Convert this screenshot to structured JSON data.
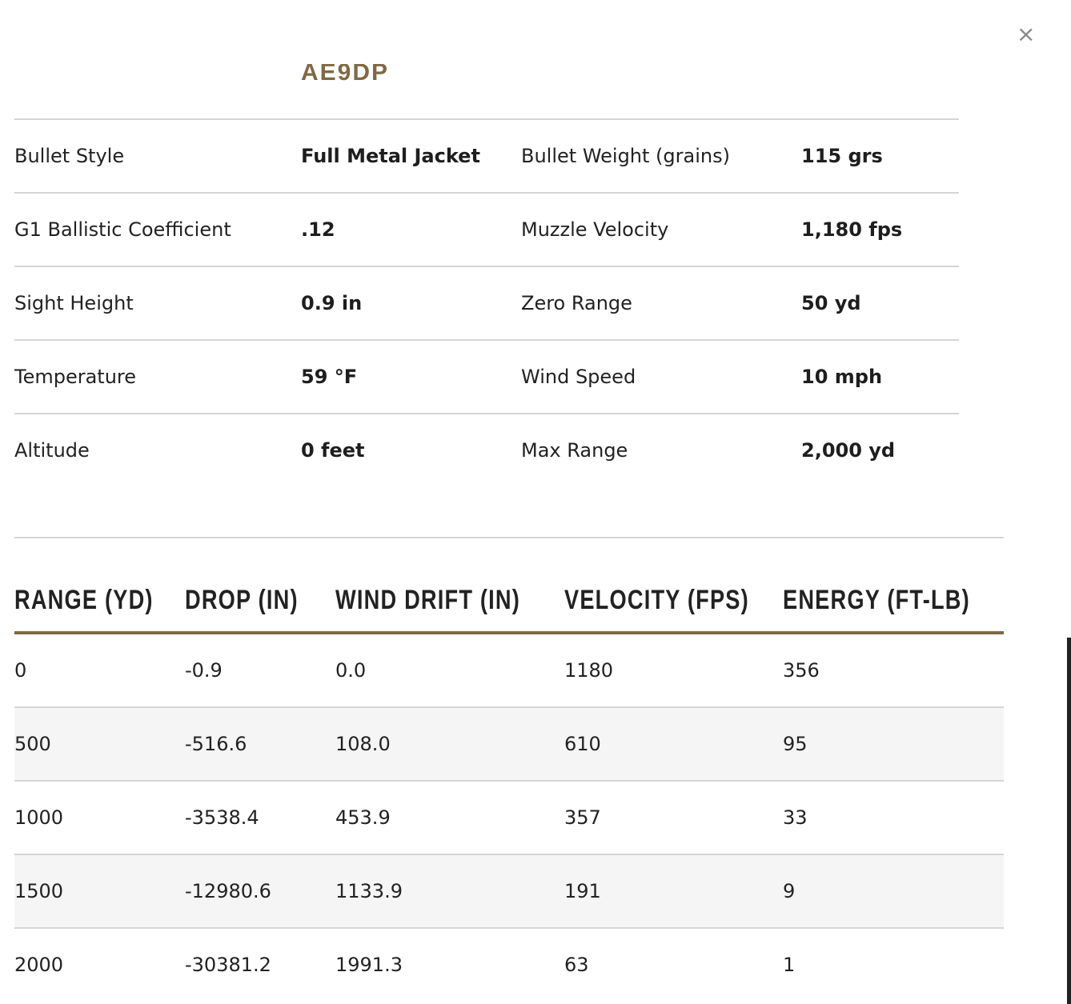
{
  "close_label": "×",
  "product_code": "AE9DP",
  "specs": {
    "rows": [
      [
        {
          "label": "Bullet Style",
          "value": "Full Metal Jacket"
        },
        {
          "label": "Bullet Weight (grains)",
          "value": "115 grs"
        }
      ],
      [
        {
          "label": "G1 Ballistic Coefficient",
          "value": ".12"
        },
        {
          "label": "Muzzle Velocity",
          "value": "1,180 fps"
        }
      ],
      [
        {
          "label": "Sight Height",
          "value": "0.9 in"
        },
        {
          "label": "Zero Range",
          "value": "50 yd"
        }
      ],
      [
        {
          "label": "Temperature",
          "value": "59 °F"
        },
        {
          "label": "Wind Speed",
          "value": "10 mph"
        }
      ],
      [
        {
          "label": "Altitude",
          "value": "0 feet"
        },
        {
          "label": "Max Range",
          "value": "2,000 yd"
        }
      ]
    ]
  },
  "table": {
    "headers": [
      "RANGE (YD)",
      "DROP (IN)",
      "WIND DRIFT (IN)",
      "VELOCITY (FPS)",
      "ENERGY (FT-LB)"
    ],
    "rows": [
      [
        "0",
        "-0.9",
        "0.0",
        "1180",
        "356"
      ],
      [
        "500",
        "-516.6",
        "108.0",
        "610",
        "95"
      ],
      [
        "1000",
        "-3538.4",
        "453.9",
        "357",
        "33"
      ],
      [
        "1500",
        "-12980.6",
        "1133.9",
        "191",
        "9"
      ],
      [
        "2000",
        "-30381.2",
        "1991.3",
        "63",
        "1"
      ]
    ]
  }
}
